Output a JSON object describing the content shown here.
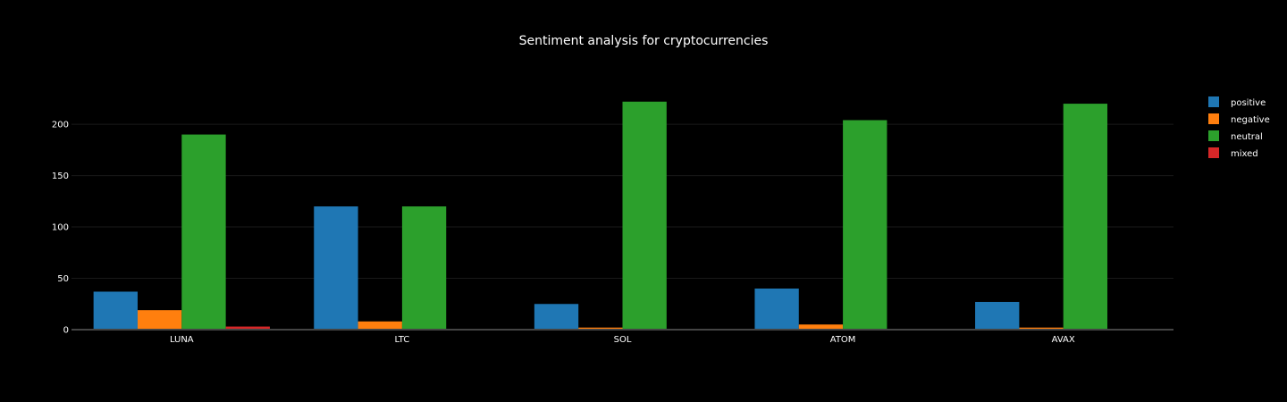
{
  "chart_data": {
    "type": "bar",
    "title": "Sentiment analysis for cryptocurrencies",
    "xlabel": "",
    "ylabel": "",
    "categories": [
      "LUNA",
      "LTC",
      "SOL",
      "ATOM",
      "AVAX"
    ],
    "series": [
      {
        "name": "positive",
        "color": "#1f77b4",
        "values": [
          37,
          120,
          25,
          40,
          27
        ]
      },
      {
        "name": "negative",
        "color": "#ff7f0e",
        "values": [
          19,
          8,
          2,
          5,
          2
        ]
      },
      {
        "name": "neutral",
        "color": "#2ca02c",
        "values": [
          190,
          120,
          222,
          204,
          220
        ]
      },
      {
        "name": "mixed",
        "color": "#d62728",
        "values": [
          3,
          0,
          0,
          0,
          0
        ]
      }
    ],
    "ylim": [
      0,
      234
    ],
    "yticks": [
      0,
      50,
      100,
      150,
      200
    ],
    "grid": true,
    "legend_position": "top-right",
    "background": "#000000"
  }
}
